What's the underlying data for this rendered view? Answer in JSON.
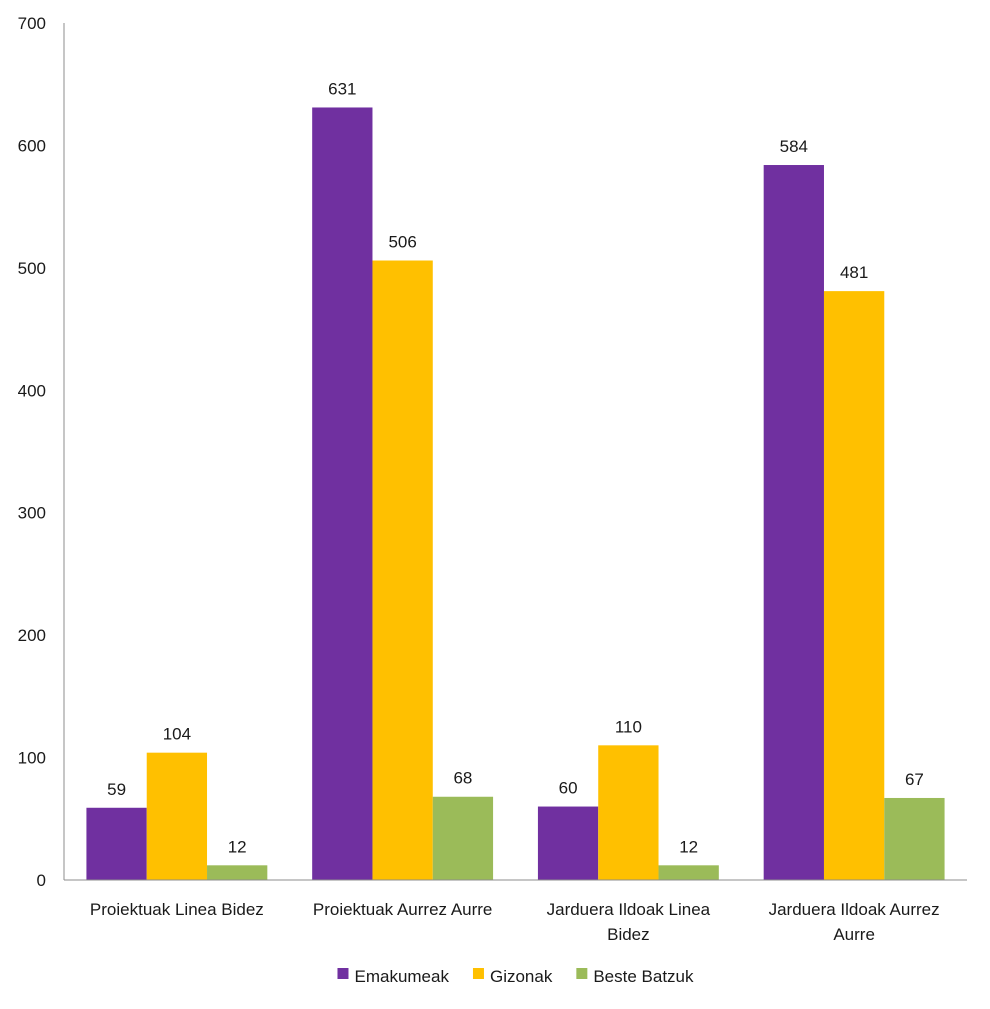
{
  "chart_data": {
    "type": "bar",
    "title": "",
    "xlabel": "",
    "ylabel": "",
    "ylim": [
      0,
      700
    ],
    "yticks": [
      0,
      100,
      200,
      300,
      400,
      500,
      600,
      700
    ],
    "grid": false,
    "legend_position": "bottom",
    "categories": [
      [
        "Proiektuak Linea Bidez"
      ],
      [
        "Proiektuak Aurrez Aurre"
      ],
      [
        "Jarduera Ildoak Linea",
        "Bidez"
      ],
      [
        "Jarduera Ildoak Aurrez",
        "Aurre"
      ]
    ],
    "series": [
      {
        "name": "Emakumeak",
        "color": "#7030a0",
        "values": [
          59,
          631,
          60,
          584
        ]
      },
      {
        "name": "Gizonak",
        "color": "#ffc000",
        "values": [
          104,
          506,
          110,
          481
        ]
      },
      {
        "name": "Beste Batzuk",
        "color": "#9bbb59",
        "values": [
          12,
          68,
          12,
          67
        ]
      }
    ]
  }
}
